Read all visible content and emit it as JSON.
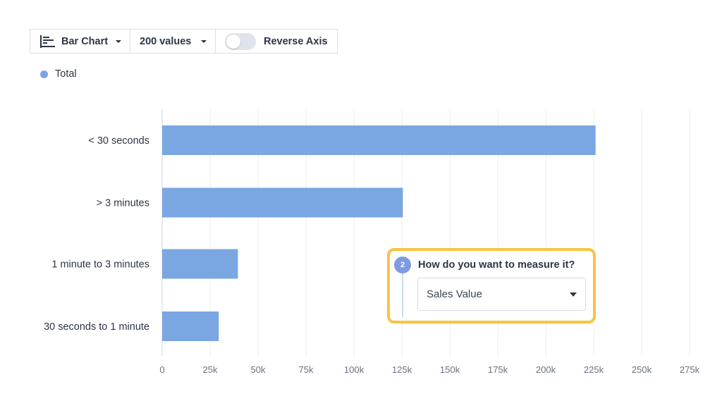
{
  "toolbar": {
    "chart_type_label": "Bar Chart",
    "values_label": "200 values",
    "reverse_axis_label": "Reverse Axis",
    "reverse_axis_on": false
  },
  "legend": {
    "label": "Total",
    "color": "#7aa7e2"
  },
  "step": {
    "number": "2",
    "question": "How do you want to measure it?",
    "selected_value": "Sales Value",
    "highlight_color": "#fbc343"
  },
  "chart_data": {
    "type": "bar",
    "orientation": "horizontal",
    "categories": [
      "< 30 seconds",
      "> 3 minutes",
      "1 minute to 3 minutes",
      "30 seconds to 1 minute"
    ],
    "series": [
      {
        "name": "Total",
        "values": [
          226000,
          125500,
          39500,
          29500
        ],
        "color": "#7aa7e2"
      }
    ],
    "xlim": [
      0,
      275000
    ],
    "xticks": [
      0,
      25000,
      50000,
      75000,
      100000,
      125000,
      150000,
      175000,
      200000,
      225000,
      250000,
      275000
    ],
    "xtick_labels": [
      "0",
      "25k",
      "50k",
      "75k",
      "100k",
      "125k",
      "150k",
      "175k",
      "200k",
      "225k",
      "250k",
      "275k"
    ],
    "grid": true,
    "legend_position": "top-left"
  }
}
